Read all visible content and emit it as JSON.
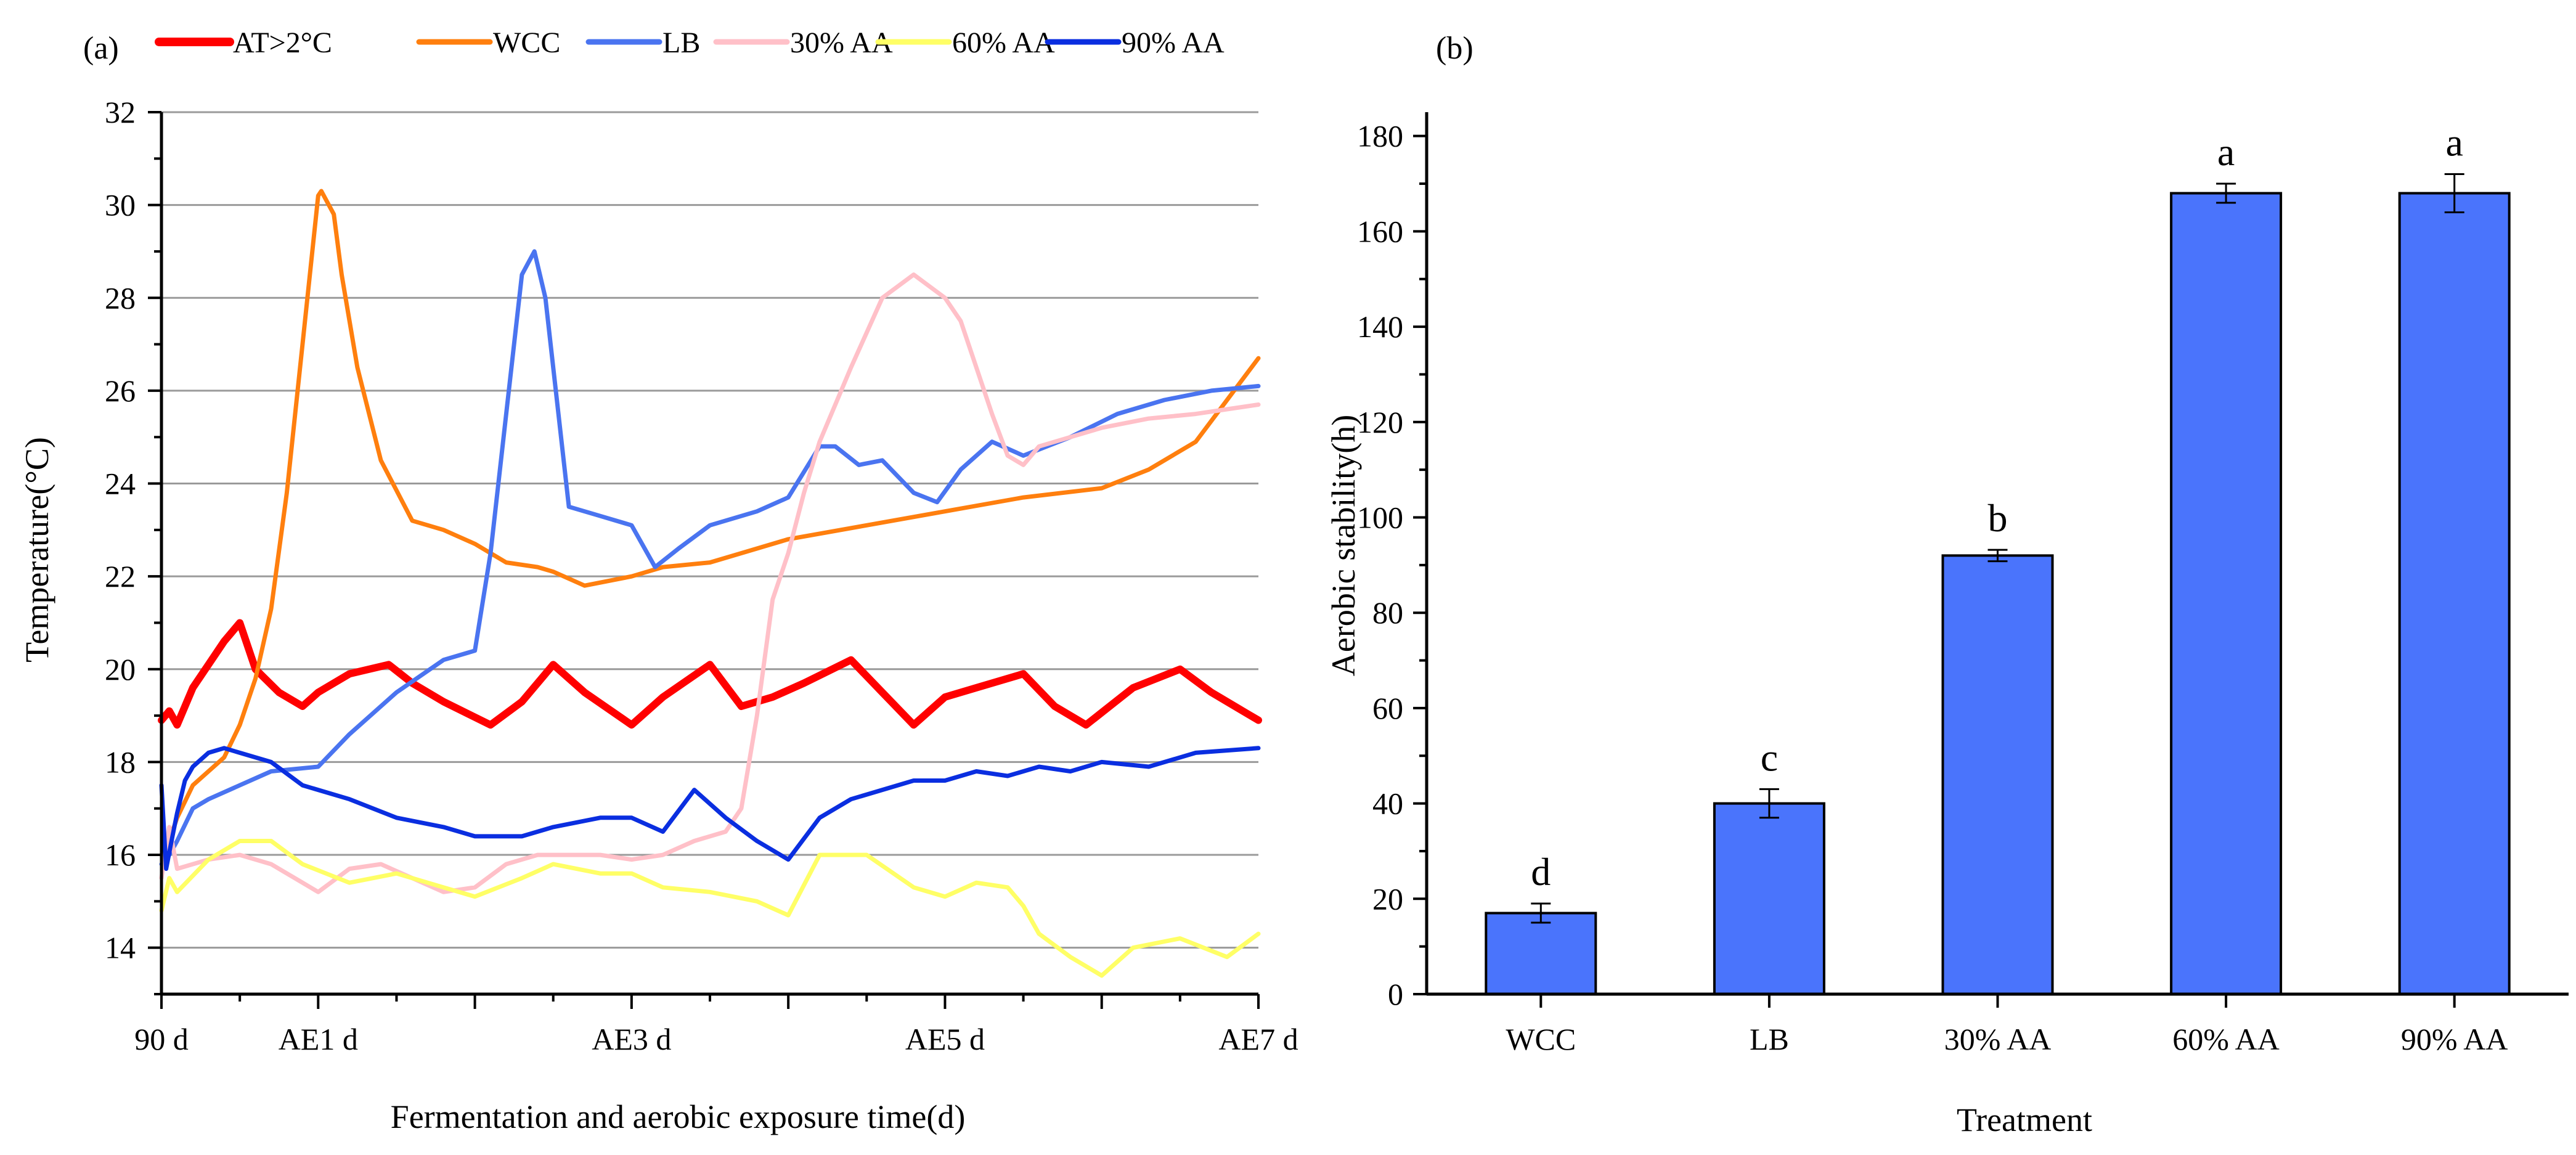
{
  "chart_data": [
    {
      "type": "line",
      "panel_label": "(a)",
      "title": "",
      "xlabel": "Fermentation and aerobic exposure time(d)",
      "ylabel": "Temperature(°C)",
      "xlim": [
        0,
        7
      ],
      "ylim": [
        13,
        32
      ],
      "yticks": [
        14,
        16,
        18,
        20,
        22,
        24,
        26,
        28,
        30,
        32
      ],
      "ytick_labels": [
        "14",
        "16",
        "18",
        "20",
        "22",
        "24",
        "26",
        "28",
        "30",
        "32"
      ],
      "xticks": [
        0,
        1,
        3,
        5,
        7
      ],
      "xtick_labels": [
        "90 d",
        "AE1 d",
        "AE3 d",
        "AE5 d",
        "AE7 d"
      ],
      "grid": true,
      "legend_position": "top",
      "series": [
        {
          "name": "AT>2°C",
          "color": "#ff0000",
          "x": [
            0,
            0.05,
            0.1,
            0.2,
            0.3,
            0.4,
            0.5,
            0.6,
            0.75,
            0.9,
            1.0,
            1.2,
            1.45,
            1.6,
            1.8,
            2.1,
            2.3,
            2.5,
            2.7,
            3.0,
            3.2,
            3.5,
            3.7,
            3.9,
            4.1,
            4.4,
            4.6,
            4.8,
            5.0,
            5.2,
            5.5,
            5.7,
            5.9,
            6.2,
            6.5,
            6.7,
            6.9,
            7.0
          ],
          "values": [
            18.9,
            19.1,
            18.8,
            19.6,
            20.1,
            20.6,
            21.0,
            20.0,
            19.5,
            19.2,
            19.5,
            19.9,
            20.1,
            19.7,
            19.3,
            18.8,
            19.3,
            20.1,
            19.5,
            18.8,
            19.4,
            20.1,
            19.2,
            19.4,
            19.7,
            20.2,
            19.5,
            18.8,
            19.4,
            19.6,
            19.9,
            19.2,
            18.8,
            19.6,
            20.0,
            19.5,
            19.1,
            18.9
          ]
        },
        {
          "name": "WCC",
          "color": "#ff7f0e",
          "x": [
            0,
            0.05,
            0.1,
            0.2,
            0.4,
            0.5,
            0.6,
            0.7,
            0.8,
            0.9,
            1.0,
            1.02,
            1.1,
            1.15,
            1.25,
            1.4,
            1.6,
            1.8,
            2.0,
            2.2,
            2.4,
            2.5,
            2.7,
            3.0,
            3.2,
            3.5,
            3.8,
            4.0,
            4.5,
            5.0,
            5.5,
            6.0,
            6.3,
            6.6,
            6.8,
            7.0
          ],
          "values": [
            16.0,
            16.3,
            16.8,
            17.5,
            18.1,
            18.8,
            19.8,
            21.3,
            23.8,
            27.0,
            30.2,
            30.3,
            29.8,
            28.5,
            26.5,
            24.5,
            23.2,
            23.0,
            22.7,
            22.3,
            22.2,
            22.1,
            21.8,
            22.0,
            22.2,
            22.3,
            22.6,
            22.8,
            23.1,
            23.4,
            23.7,
            23.9,
            24.3,
            24.9,
            25.8,
            26.7
          ]
        },
        {
          "name": "LB",
          "color": "#4a74f0",
          "x": [
            0,
            0.05,
            0.1,
            0.2,
            0.3,
            0.5,
            0.7,
            1.0,
            1.2,
            1.5,
            1.8,
            2.0,
            2.1,
            2.2,
            2.3,
            2.38,
            2.45,
            2.6,
            2.8,
            3.0,
            3.15,
            3.3,
            3.5,
            3.8,
            4.0,
            4.2,
            4.3,
            4.45,
            4.6,
            4.8,
            4.95,
            5.1,
            5.3,
            5.5,
            5.8,
            6.1,
            6.4,
            6.7,
            7.0
          ],
          "values": [
            15.8,
            16.0,
            16.3,
            17.0,
            17.2,
            17.5,
            17.8,
            17.9,
            18.6,
            19.5,
            20.2,
            20.4,
            22.5,
            25.5,
            28.5,
            29.0,
            28.0,
            23.5,
            23.3,
            23.1,
            22.2,
            22.6,
            23.1,
            23.4,
            23.7,
            24.8,
            24.8,
            24.4,
            24.5,
            23.8,
            23.6,
            24.3,
            24.9,
            24.6,
            25.0,
            25.5,
            25.8,
            26.0,
            26.1
          ]
        },
        {
          "name": "30% AA",
          "color": "#ffc0c8",
          "x": [
            0,
            0.05,
            0.1,
            0.3,
            0.5,
            0.7,
            0.9,
            1.0,
            1.2,
            1.4,
            1.6,
            1.8,
            2.0,
            2.2,
            2.4,
            2.6,
            2.8,
            3.0,
            3.2,
            3.4,
            3.6,
            3.7,
            3.8,
            3.9,
            4.0,
            4.1,
            4.2,
            4.4,
            4.6,
            4.8,
            5.0,
            5.1,
            5.2,
            5.3,
            5.4,
            5.5,
            5.6,
            5.8,
            6.0,
            6.3,
            6.6,
            6.8,
            7.0
          ],
          "values": [
            15.5,
            16.6,
            15.7,
            15.9,
            16.0,
            15.8,
            15.4,
            15.2,
            15.7,
            15.8,
            15.5,
            15.2,
            15.3,
            15.8,
            16.0,
            16.0,
            16.0,
            15.9,
            16.0,
            16.3,
            16.5,
            17.0,
            19.0,
            21.5,
            22.5,
            23.8,
            24.9,
            26.5,
            28.0,
            28.5,
            28.0,
            27.5,
            26.5,
            25.5,
            24.6,
            24.4,
            24.8,
            25.0,
            25.2,
            25.4,
            25.5,
            25.6,
            25.7
          ]
        },
        {
          "name": "60% AA",
          "color": "#ffff66",
          "x": [
            0,
            0.05,
            0.1,
            0.3,
            0.5,
            0.7,
            0.9,
            1.2,
            1.5,
            1.8,
            2.0,
            2.3,
            2.5,
            2.8,
            3.0,
            3.2,
            3.5,
            3.8,
            4.0,
            4.2,
            4.5,
            4.8,
            5.0,
            5.2,
            5.4,
            5.5,
            5.6,
            5.8,
            6.0,
            6.2,
            6.5,
            6.8,
            7.0
          ],
          "values": [
            14.8,
            15.5,
            15.2,
            15.9,
            16.3,
            16.3,
            15.8,
            15.4,
            15.6,
            15.3,
            15.1,
            15.5,
            15.8,
            15.6,
            15.6,
            15.3,
            15.2,
            15.0,
            14.7,
            16.0,
            16.0,
            15.3,
            15.1,
            15.4,
            15.3,
            14.9,
            14.3,
            13.8,
            13.4,
            14.0,
            14.2,
            13.8,
            14.3
          ]
        },
        {
          "name": "90% AA",
          "color": "#0a2ee0",
          "x": [
            0,
            0.03,
            0.07,
            0.1,
            0.15,
            0.2,
            0.3,
            0.4,
            0.5,
            0.7,
            0.9,
            1.2,
            1.5,
            1.8,
            2.0,
            2.3,
            2.5,
            2.8,
            3.0,
            3.2,
            3.4,
            3.6,
            3.8,
            4.0,
            4.2,
            4.4,
            4.6,
            4.8,
            5.0,
            5.2,
            5.4,
            5.6,
            5.8,
            6.0,
            6.3,
            6.6,
            7.0
          ],
          "values": [
            17.5,
            15.7,
            16.4,
            16.9,
            17.6,
            17.9,
            18.2,
            18.3,
            18.2,
            18.0,
            17.5,
            17.2,
            16.8,
            16.6,
            16.4,
            16.4,
            16.6,
            16.8,
            16.8,
            16.5,
            17.4,
            16.8,
            16.3,
            15.9,
            16.8,
            17.2,
            17.4,
            17.6,
            17.6,
            17.8,
            17.7,
            17.9,
            17.8,
            18.0,
            17.9,
            18.2,
            18.3
          ]
        }
      ]
    },
    {
      "type": "bar",
      "panel_label": "(b)",
      "title": "",
      "xlabel": "Treatment",
      "ylabel": "Aerobic stability(h)",
      "categories": [
        "WCC",
        "LB",
        "30% AA",
        "60% AA",
        "90% AA"
      ],
      "values": [
        17,
        40,
        92,
        168,
        168
      ],
      "errors": [
        2,
        3,
        1.2,
        2,
        4
      ],
      "significance": [
        "d",
        "c",
        "b",
        "a",
        "a"
      ],
      "bar_color": "#4a74fc",
      "ylim": [
        0,
        185
      ],
      "yticks": [
        0,
        20,
        40,
        60,
        80,
        100,
        120,
        140,
        160,
        180
      ],
      "ytick_labels": [
        "0",
        "20",
        "40",
        "60",
        "80",
        "100",
        "120",
        "140",
        "160",
        "180"
      ],
      "grid": false
    }
  ]
}
